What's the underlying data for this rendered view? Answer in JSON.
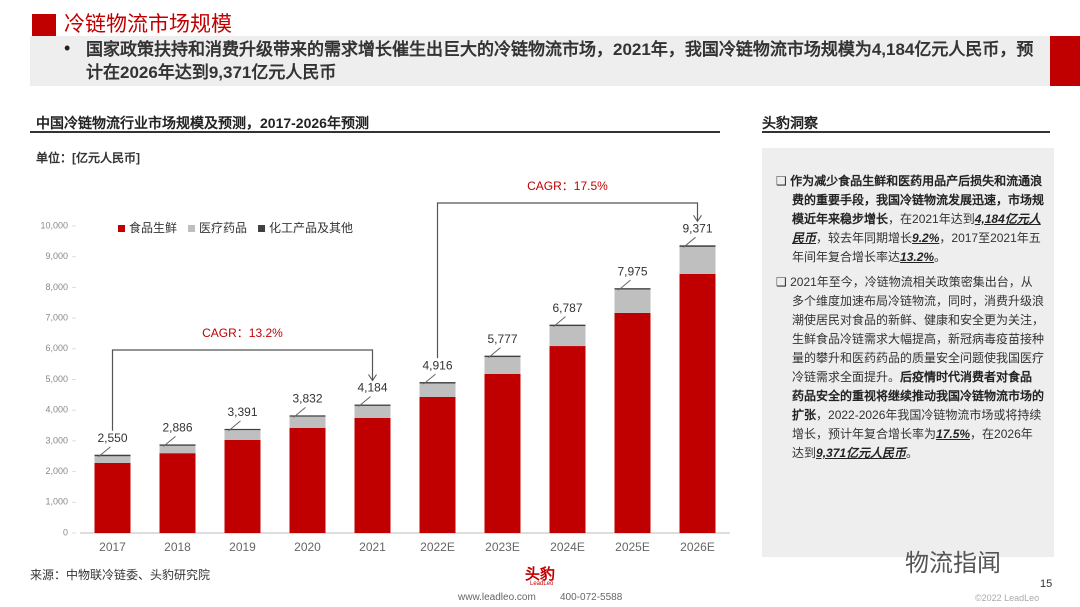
{
  "header": {
    "title": "冷链物流市场规模",
    "bullet": "国家政策扶持和消费升级带来的需求增长催生出巨大的冷链物流市场，2021年，我国冷链物流市场规模为4,184亿元人民币，预计在2026年达到9,371亿元人民币"
  },
  "chart_data": {
    "type": "stacked_bar",
    "title": "中国冷链物流行业市场规模及预测，2017-2026年预测",
    "unit": "单位：[亿元人民币]",
    "categories": [
      "2017",
      "2018",
      "2019",
      "2020",
      "2021",
      "2022E",
      "2023E",
      "2024E",
      "2025E",
      "2026E"
    ],
    "series": [
      {
        "name": "食品生鲜",
        "color": "#c00000",
        "values": [
          2280,
          2600,
          3030,
          3420,
          3750,
          4430,
          5180,
          6090,
          7170,
          8440
        ]
      },
      {
        "name": "医疗药品",
        "color": "#bfbfbf",
        "values": [
          220,
          240,
          320,
          370,
          390,
          440,
          550,
          650,
          760,
          880
        ]
      },
      {
        "name": "化工产品及其他",
        "color": "#404040",
        "values": [
          50,
          46,
          41,
          42,
          44,
          46,
          47,
          47,
          45,
          51
        ]
      }
    ],
    "totals": {
      "values": [
        2550,
        2886,
        3391,
        3832,
        4184,
        4916,
        5777,
        6787,
        7975,
        9371
      ],
      "value_labels": [
        "2,550",
        "2,886",
        "3,391",
        "3,832",
        "4,184",
        "4,916",
        "5,777",
        "6,787",
        "7,975",
        "9,371"
      ]
    },
    "annotations": [
      {
        "text": "CAGR：13.2%",
        "from": 0,
        "to": 4
      },
      {
        "text": "CAGR：17.5%",
        "from": 5,
        "to": 9
      }
    ],
    "ylim": [
      0,
      10000
    ],
    "yticks": [
      0,
      {
        "value": 1000,
        "label": "1,000"
      },
      {
        "value": 2000,
        "label": "2,000"
      },
      {
        "value": 3000,
        "label": "3,000"
      },
      {
        "value": 4000,
        "label": "4,000"
      },
      {
        "value": 5000,
        "label": "5,000"
      },
      {
        "value": 6000,
        "label": "6,000"
      },
      {
        "value": 7000,
        "label": "7,000"
      },
      {
        "value": 8000,
        "label": "8,000"
      },
      {
        "value": 9000,
        "label": "9,000"
      },
      {
        "value": 10000,
        "label": "10,000"
      }
    ],
    "grid": false
  },
  "insight": {
    "title": "头豹洞察",
    "items": [
      [
        {
          "text": "作为减少食品生鲜和医药用品产后损失和流通浪费的重要手段，我国冷链物流发展迅速，市场规模近年来稳步增长",
          "style": "b"
        },
        {
          "text": "，在2021年达到",
          "style": ""
        },
        {
          "text": "4,184亿元人民币",
          "style": "e"
        },
        {
          "text": "，较去年同期增长",
          "style": ""
        },
        {
          "text": "9.2%",
          "style": "e"
        },
        {
          "text": "，2017至2021年五年间年复合增长率达",
          "style": ""
        },
        {
          "text": "13.2%",
          "style": "e"
        },
        {
          "text": "。",
          "style": ""
        }
      ],
      [
        {
          "text": "2021年至今，冷链物流相关政策密集出台，从多个维度加速布局冷链物流，同时，消费升级浪潮使居民对食品的新鲜、健康和安全更为关注，生鲜食品冷链需求大幅提高，新冠病毒疫苗接种量的攀升和医药药品的质量安全问题使我国医疗冷链需求全面提升。",
          "style": ""
        },
        {
          "text": "后疫情时代消费者对食品药品安全的重视将继续推动我国冷链物流市场的扩张",
          "style": "b"
        },
        {
          "text": "，2022-2026年我国冷链物流市场或将持续增长，预计年复合增长率为",
          "style": ""
        },
        {
          "text": "17.5%",
          "style": "e"
        },
        {
          "text": "，在2026年达到",
          "style": ""
        },
        {
          "text": "9,371亿元人民币",
          "style": "e"
        },
        {
          "text": "。",
          "style": ""
        }
      ]
    ]
  },
  "footer": {
    "source": "来源：中物联冷链委、头豹研究院",
    "logo": "头豹",
    "logo_sub": "LeadLeo",
    "website": "www.leadleo.com",
    "phone": "400-072-5588",
    "page": "15",
    "copyright": "©2022 LeadLeo",
    "watermark": "物流指闻"
  }
}
